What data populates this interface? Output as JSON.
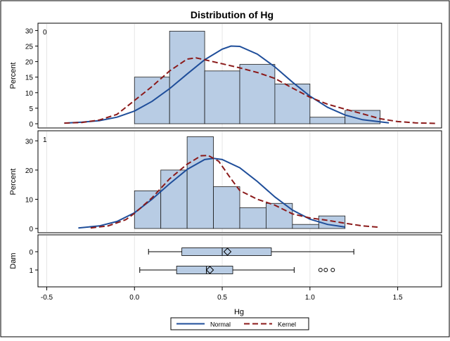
{
  "chart_data": {
    "type": "histogram",
    "title": "Distribution of Hg",
    "xlabel": "Hg",
    "x_ticks": [
      "-0.5",
      "0.0",
      "0.5",
      "1.0",
      "1.5"
    ],
    "x_tick_values": [
      -0.5,
      0.0,
      0.5,
      1.0,
      1.5
    ],
    "xlim": [
      -0.55,
      1.75
    ],
    "grid": true,
    "legend_position": "bottom-center",
    "legend": [
      {
        "name": "Normal",
        "style": "solid",
        "color": "#1f4e9a"
      },
      {
        "name": "Kernel",
        "style": "dashed",
        "color": "#8b1a1a"
      }
    ],
    "colors": {
      "bar_fill": "#b8cce4",
      "bar_stroke": "#1a1a1a",
      "normal": "#1f4e9a",
      "kernel": "#8b1a1a",
      "grid": "#e6e6e6"
    },
    "panels": [
      {
        "group": "0",
        "ylabel": "Percent",
        "ylim": [
          0,
          31
        ],
        "y_ticks": [
          "0",
          "5",
          "10",
          "15",
          "20",
          "25",
          "30"
        ],
        "y_tick_values": [
          0,
          5,
          10,
          15,
          20,
          25,
          30
        ],
        "bins": [
          {
            "start": 0.0,
            "end": 0.2,
            "percent": 15.0
          },
          {
            "start": 0.2,
            "end": 0.4,
            "percent": 29.8
          },
          {
            "start": 0.4,
            "end": 0.6,
            "percent": 17.0
          },
          {
            "start": 0.6,
            "end": 0.8,
            "percent": 19.1
          },
          {
            "start": 0.8,
            "end": 1.0,
            "percent": 12.8
          },
          {
            "start": 1.0,
            "end": 1.2,
            "percent": 2.1
          },
          {
            "start": 1.2,
            "end": 1.4,
            "percent": 4.3
          }
        ],
        "normal_curve": [
          [
            -0.4,
            0.2
          ],
          [
            -0.3,
            0.5
          ],
          [
            -0.2,
            1.0
          ],
          [
            -0.1,
            2.1
          ],
          [
            0.0,
            4.1
          ],
          [
            0.1,
            7.2
          ],
          [
            0.2,
            11.3
          ],
          [
            0.3,
            16.0
          ],
          [
            0.4,
            20.6
          ],
          [
            0.5,
            24.0
          ],
          [
            0.55,
            25.0
          ],
          [
            0.6,
            24.9
          ],
          [
            0.7,
            22.4
          ],
          [
            0.8,
            18.3
          ],
          [
            0.9,
            13.4
          ],
          [
            1.0,
            8.9
          ],
          [
            1.1,
            5.3
          ],
          [
            1.2,
            2.8
          ],
          [
            1.3,
            1.3
          ],
          [
            1.4,
            0.6
          ],
          [
            1.45,
            0.3
          ]
        ],
        "kernel_curve": [
          [
            -0.4,
            0.2
          ],
          [
            -0.3,
            0.4
          ],
          [
            -0.2,
            1.2
          ],
          [
            -0.1,
            3.0
          ],
          [
            0.0,
            7.5
          ],
          [
            0.1,
            12.0
          ],
          [
            0.2,
            17.0
          ],
          [
            0.3,
            20.8
          ],
          [
            0.35,
            21.2
          ],
          [
            0.4,
            20.6
          ],
          [
            0.5,
            19.3
          ],
          [
            0.6,
            18.0
          ],
          [
            0.7,
            16.5
          ],
          [
            0.8,
            14.6
          ],
          [
            0.9,
            11.5
          ],
          [
            1.0,
            8.5
          ],
          [
            1.1,
            6.3
          ],
          [
            1.2,
            4.7
          ],
          [
            1.3,
            3.2
          ],
          [
            1.4,
            1.6
          ],
          [
            1.5,
            0.7
          ],
          [
            1.6,
            0.3
          ],
          [
            1.72,
            0.1
          ]
        ]
      },
      {
        "group": "1",
        "ylabel": "Percent",
        "ylim": [
          0,
          32
        ],
        "y_ticks": [
          "0",
          "10",
          "20",
          "30"
        ],
        "y_tick_values": [
          0,
          10,
          20,
          30
        ],
        "bins": [
          {
            "start": 0.0,
            "end": 0.15,
            "percent": 12.9
          },
          {
            "start": 0.15,
            "end": 0.3,
            "percent": 20.0
          },
          {
            "start": 0.3,
            "end": 0.45,
            "percent": 31.4
          },
          {
            "start": 0.45,
            "end": 0.6,
            "percent": 14.3
          },
          {
            "start": 0.6,
            "end": 0.75,
            "percent": 7.1
          },
          {
            "start": 0.75,
            "end": 0.9,
            "percent": 8.6
          },
          {
            "start": 0.9,
            "end": 1.05,
            "percent": 1.4
          },
          {
            "start": 1.05,
            "end": 1.2,
            "percent": 4.3
          }
        ],
        "normal_curve": [
          [
            -0.32,
            0.2
          ],
          [
            -0.2,
            0.9
          ],
          [
            -0.1,
            2.4
          ],
          [
            0.0,
            5.4
          ],
          [
            0.1,
            10.0
          ],
          [
            0.2,
            15.3
          ],
          [
            0.3,
            20.2
          ],
          [
            0.4,
            23.6
          ],
          [
            0.45,
            24.0
          ],
          [
            0.5,
            23.6
          ],
          [
            0.6,
            20.8
          ],
          [
            0.7,
            16.1
          ],
          [
            0.8,
            10.8
          ],
          [
            0.9,
            6.3
          ],
          [
            1.0,
            3.2
          ],
          [
            1.1,
            1.4
          ],
          [
            1.2,
            0.5
          ]
        ],
        "kernel_curve": [
          [
            -0.25,
            0.2
          ],
          [
            -0.15,
            0.9
          ],
          [
            -0.05,
            3.0
          ],
          [
            0.0,
            5.2
          ],
          [
            0.1,
            10.5
          ],
          [
            0.2,
            17.0
          ],
          [
            0.3,
            22.0
          ],
          [
            0.38,
            24.9
          ],
          [
            0.42,
            25.0
          ],
          [
            0.48,
            23.0
          ],
          [
            0.55,
            17.0
          ],
          [
            0.6,
            13.0
          ],
          [
            0.7,
            10.0
          ],
          [
            0.8,
            8.0
          ],
          [
            0.9,
            5.0
          ],
          [
            1.0,
            3.6
          ],
          [
            1.1,
            2.8
          ],
          [
            1.2,
            1.8
          ],
          [
            1.3,
            0.9
          ],
          [
            1.4,
            0.4
          ]
        ]
      }
    ],
    "boxplot": {
      "ylabel": "Dam",
      "groups": [
        {
          "label": "0",
          "whisker_low": 0.08,
          "q1": 0.27,
          "median": 0.5,
          "mean": 0.53,
          "q3": 0.78,
          "whisker_high": 1.25,
          "outliers": []
        },
        {
          "label": "1",
          "whisker_low": 0.03,
          "q1": 0.24,
          "median": 0.41,
          "mean": 0.43,
          "q3": 0.56,
          "whisker_high": 0.91,
          "outliers": [
            1.06,
            1.09,
            1.13
          ]
        }
      ]
    }
  }
}
